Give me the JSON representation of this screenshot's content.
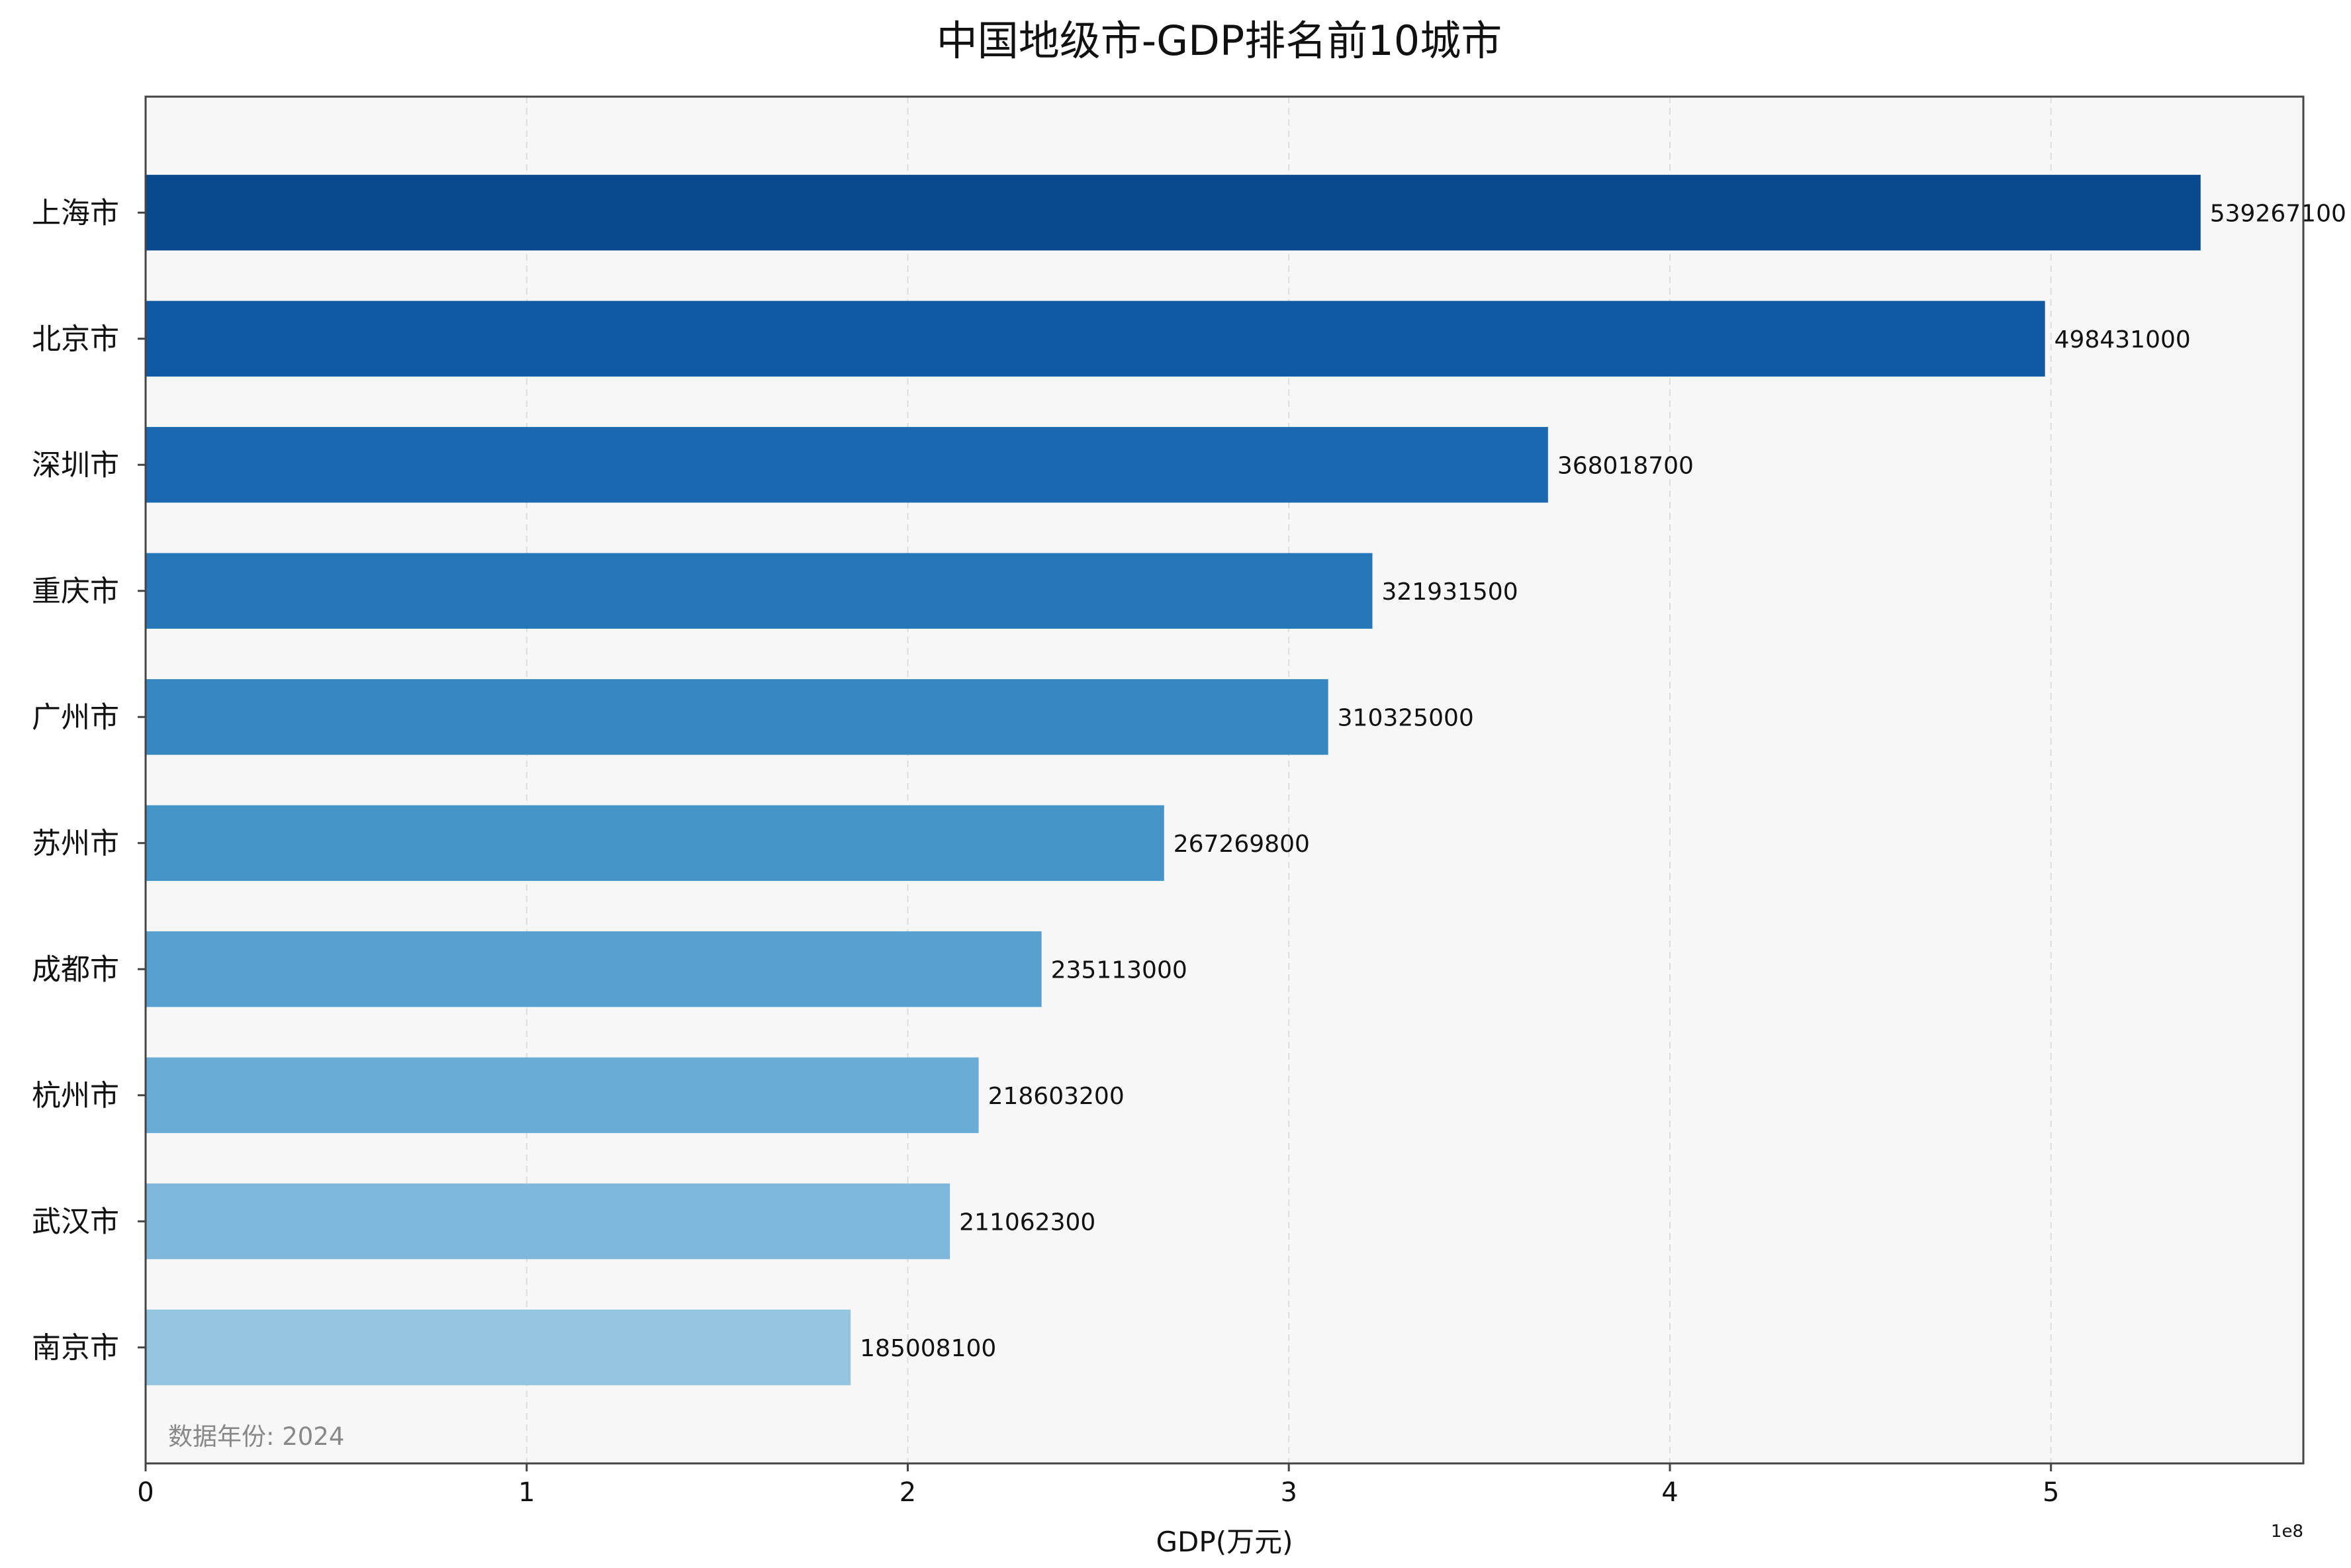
{
  "chart_data": {
    "type": "bar",
    "orientation": "horizontal",
    "title": "中国地级市-GDP排名前10城市",
    "xlabel": "GDP(万元)",
    "ylabel": "",
    "x_offset_label": "1e8",
    "x_ticks": [
      0,
      1,
      2,
      3,
      4,
      5
    ],
    "xlim": [
      0,
      566230455
    ],
    "grid": "x-only dashed",
    "annotation": "数据年份: 2024",
    "categories": [
      "上海市",
      "北京市",
      "深圳市",
      "重庆市",
      "广州市",
      "苏州市",
      "成都市",
      "杭州市",
      "武汉市",
      "南京市"
    ],
    "values": [
      539267100,
      498431000,
      368018700,
      321931500,
      310325000,
      267269800,
      235113000,
      218603200,
      211062300,
      185008100
    ],
    "colors": [
      "#08498f",
      "#0f59a4",
      "#1a69b0",
      "#2677ba",
      "#3787c1",
      "#4494c7",
      "#57a0cf",
      "#69add6",
      "#7fb7db",
      "#94c4e0"
    ]
  }
}
